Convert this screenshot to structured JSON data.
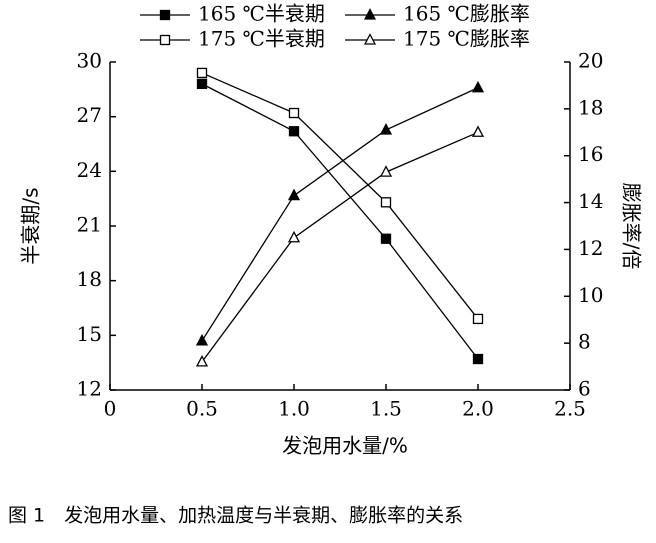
{
  "chart_data": {
    "type": "line",
    "caption": "图 1　发泡用水量、加热温度与半衰期、膨胀率的关系",
    "x_label": "发泡用水量/%",
    "y_label": "半衰期/s",
    "y2_label": "膨胀率/倍",
    "x": [
      0.5,
      {
        "value": 1,
        "label": "1.0"
      },
      1.5,
      {
        "value": 2,
        "label": "2.0"
      }
    ],
    "xlim": [
      0,
      2.5
    ],
    "xticks": [
      0,
      0.5,
      {
        "value": 1,
        "label": "1.0"
      },
      1.5,
      {
        "value": 2,
        "label": "2.0"
      },
      2.5
    ],
    "ylim": [
      12,
      30
    ],
    "yticks": [
      12,
      15,
      18,
      21,
      24,
      27,
      30
    ],
    "y2lim": [
      6,
      20
    ],
    "y2ticks": [
      6,
      8,
      10,
      12,
      14,
      16,
      18,
      20
    ],
    "series": [
      {
        "name": "165 ℃半衰期",
        "color": "#000000",
        "marker": "square",
        "filled": true,
        "values": [
          28.8,
          26.2,
          20.3,
          13.7
        ]
      },
      {
        "name": "165 ℃膨胀率",
        "color": "#000000",
        "marker": "triangle",
        "filled": true,
        "axis": "y2",
        "values": [
          8.1,
          14.3,
          17.1,
          18.9
        ]
      },
      {
        "name": "175 ℃半衰期",
        "color": "#000000",
        "marker": "square",
        "filled": false,
        "values": [
          29.4,
          27.2,
          22.3,
          15.9
        ]
      },
      {
        "name": "175 ℃膨胀率",
        "color": "#000000",
        "marker": "triangle",
        "filled": false,
        "axis": "y2",
        "values": [
          7.2,
          12.5,
          15.3,
          17.0
        ]
      }
    ]
  }
}
